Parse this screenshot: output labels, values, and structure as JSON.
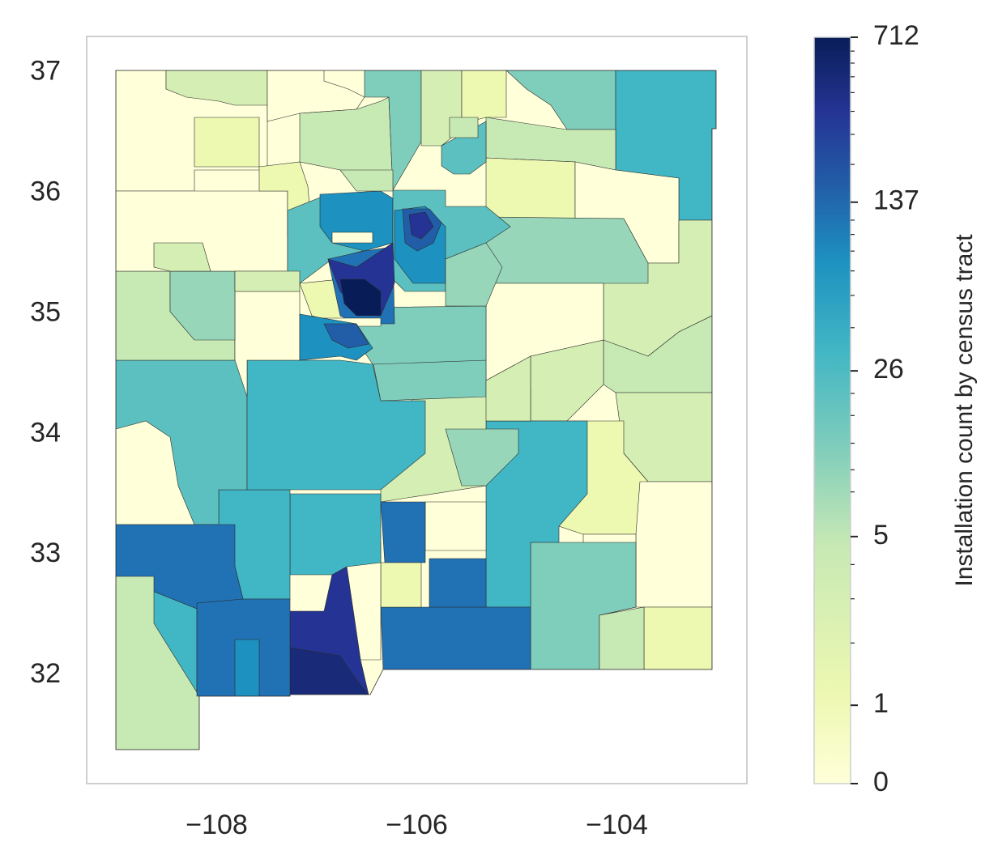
{
  "map": {
    "x_ticks": [
      "−108",
      "−106",
      "−104"
    ],
    "y_ticks": [
      "37",
      "36",
      "35",
      "34",
      "33",
      "32"
    ],
    "x_tick_values": [
      -108,
      -106,
      -104
    ],
    "y_tick_values": [
      37,
      36,
      35,
      34,
      33,
      32
    ],
    "xlim": [
      -109.3,
      -102.7
    ],
    "ylim": [
      31.1,
      37.3
    ],
    "grid": false
  },
  "colorbar": {
    "label": "Installation count by census tract",
    "ticks": [
      "712",
      "137",
      "26",
      "5",
      "1",
      "0"
    ],
    "tick_values": [
      712,
      137,
      26,
      5,
      1,
      0
    ],
    "colormap": "YlGnBu",
    "colors": {
      "c0": "#ffffd9",
      "c1": "#edf8b1",
      "c2": "#d4eeb3",
      "c3": "#c7e9b4",
      "c4": "#98d6b9",
      "c5": "#7fcdbb",
      "c6": "#5dc0c0",
      "c7": "#41b6c4",
      "c8": "#1d91c0",
      "c9": "#2171b5",
      "c10": "#225ea8",
      "c11": "#253494",
      "c12": "#182a78",
      "c13": "#081d58"
    }
  }
}
